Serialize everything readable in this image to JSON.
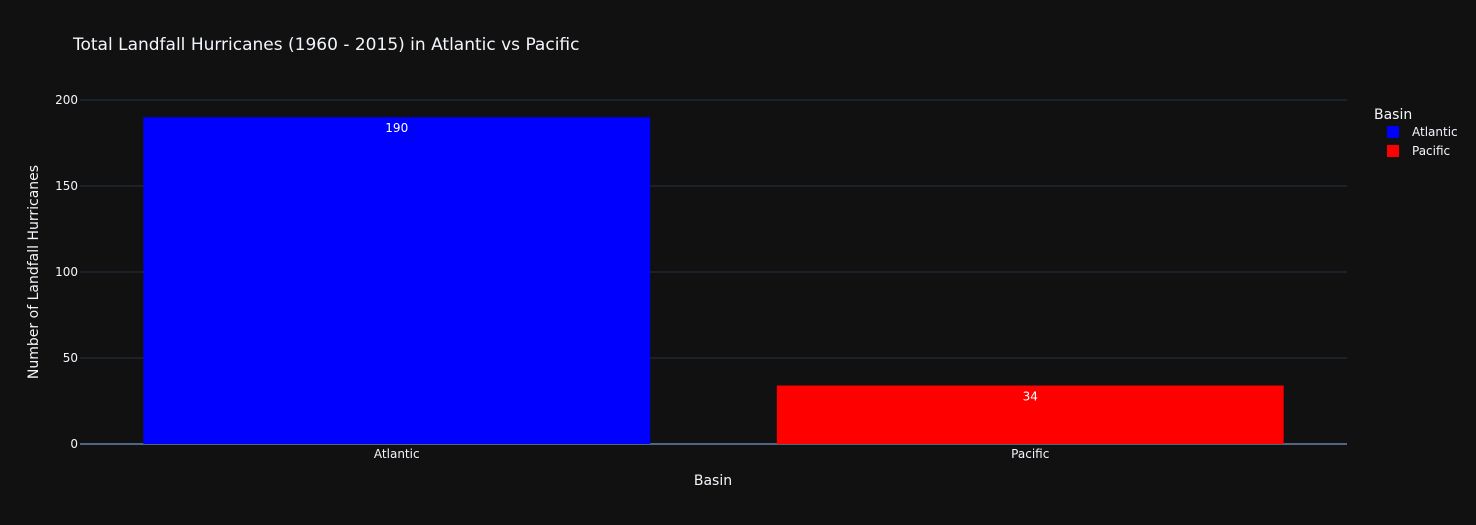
{
  "chart_data": {
    "type": "bar",
    "title": "Total Landfall Hurricanes (1960 - 2015) in Atlantic vs Pacific",
    "xlabel": "Basin",
    "ylabel": "Number of Landfall Hurricanes",
    "categories": [
      "Atlantic",
      "Pacific"
    ],
    "values": [
      190,
      34
    ],
    "data_labels": [
      "190",
      "34"
    ],
    "colors": [
      "#0000ff",
      "#ff0000"
    ],
    "ylim": [
      0,
      200
    ],
    "yticks": [
      0,
      50,
      100,
      150,
      200
    ],
    "ytick_labels": [
      "0",
      "50",
      "100",
      "150",
      "200"
    ],
    "grid": true,
    "legend": {
      "title": "Basin",
      "position": "top-right",
      "entries": [
        {
          "label": "Atlantic",
          "color": "#0000ff"
        },
        {
          "label": "Pacific",
          "color": "#ff0000"
        }
      ]
    },
    "theme": {
      "background": "#111111",
      "grid_color": "#283442",
      "text_color": "#f2f5fa"
    }
  }
}
